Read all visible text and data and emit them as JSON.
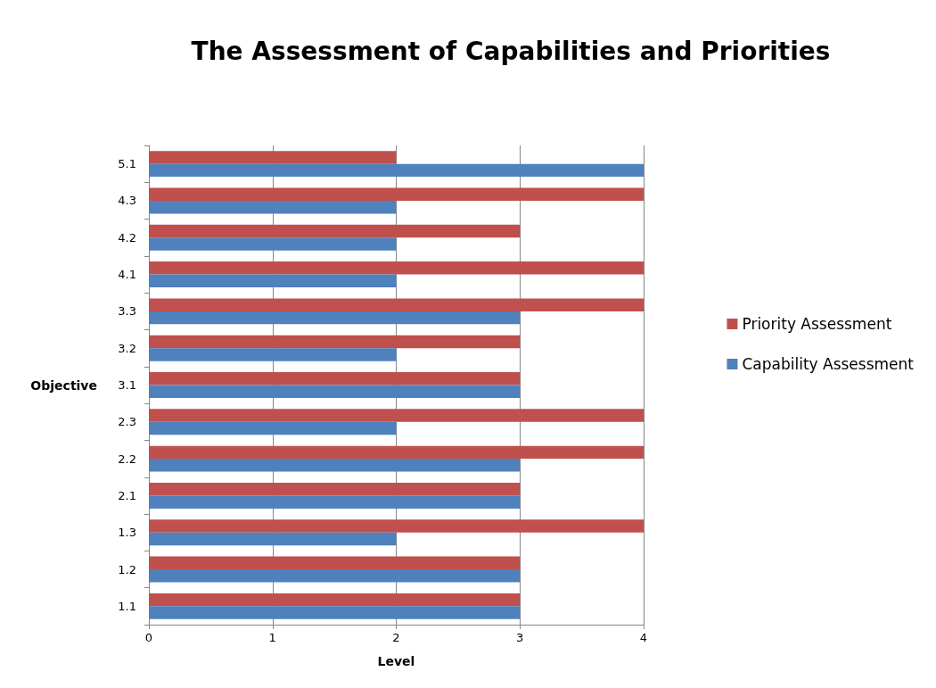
{
  "chart_data": {
    "type": "bar",
    "orientation": "horizontal",
    "title": "The Assessment of Capabilities and Priorities",
    "xlabel": "Level",
    "ylabel": "Objective",
    "categories": [
      "5.1",
      "4.3",
      "4.2",
      "4.1",
      "3.3",
      "3.2",
      "3.1",
      "2.3",
      "2.2",
      "2.1",
      "1.3",
      "1.2",
      "1.1"
    ],
    "series": [
      {
        "name": "Priority Assessment",
        "color": "#c0504d",
        "values": [
          2,
          4,
          3,
          4,
          4,
          3,
          3,
          4,
          4,
          3,
          4,
          3,
          3
        ]
      },
      {
        "name": "Capability Assessment",
        "color": "#4f81bd",
        "values": [
          4,
          2,
          2,
          2,
          3,
          2,
          3,
          2,
          3,
          3,
          2,
          3,
          3
        ]
      }
    ],
    "xlim": [
      0,
      4
    ],
    "xticks": [
      0,
      1,
      2,
      3,
      4
    ],
    "grid": "x",
    "legend": "right"
  }
}
